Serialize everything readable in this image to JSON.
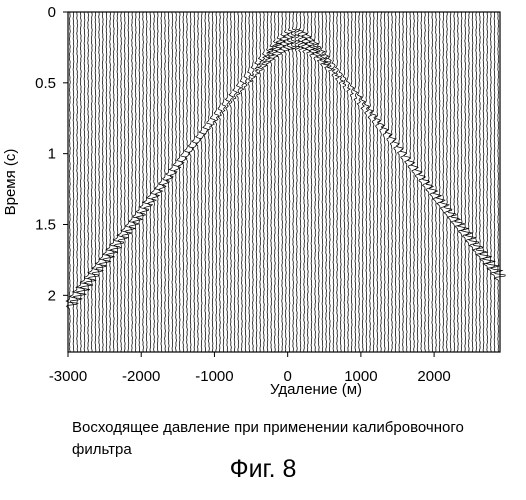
{
  "chart_data": {
    "type": "seismic wiggle section",
    "title": "",
    "xlabel": "Удаление (м)",
    "ylabel": "Время (с)",
    "xlim": [
      -3000,
      2900
    ],
    "ylim": [
      2.4,
      0
    ],
    "x_ticks": [
      -3000,
      -2000,
      -1000,
      0,
      1000,
      2000
    ],
    "x_tick_labels": [
      "-3000",
      "-2000",
      "-1000",
      "0",
      "1000",
      "2000"
    ],
    "y_ticks": [
      0,
      0.5,
      1,
      1.5,
      2
    ],
    "y_tick_labels": [
      "0",
      "0.5",
      "1",
      "1.5",
      "2"
    ],
    "trace_spacing": 50,
    "grid": false,
    "events": [
      {
        "apex_offset": 100,
        "apex_time": 0.13,
        "velocity": 1500
      },
      {
        "apex_offset": 100,
        "apex_time": 0.17,
        "velocity": 1500
      },
      {
        "apex_offset": 100,
        "apex_time": 0.21,
        "velocity": 1500
      },
      {
        "apex_offset": 100,
        "apex_time": 0.25,
        "velocity": 1500
      }
    ]
  },
  "caption": "Восходящее давление при применении калибровочного фильтра",
  "figure_label": "Фиг. 8"
}
